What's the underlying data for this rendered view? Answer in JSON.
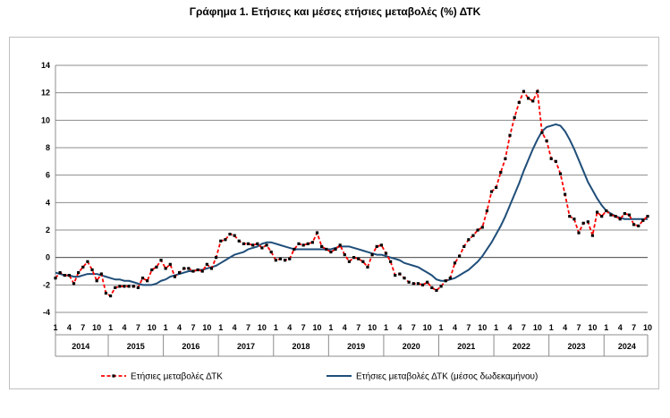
{
  "chart_data": {
    "type": "line",
    "title": "Γράφημα 1. Ετήσιες και μέσες ετήσιες μεταβολές (%) ΔΤΚ",
    "ylim": [
      -4,
      14
    ],
    "yticks": [
      "-4",
      "-2",
      "0",
      "2",
      "4",
      "6",
      "8",
      "10",
      "12",
      "14"
    ],
    "grid": true,
    "legend_position": "bottom",
    "month_tick_labels": [
      "1",
      "4",
      "7",
      "10"
    ],
    "years": [
      "2014",
      "2015",
      "2016",
      "2017",
      "2018",
      "2019",
      "2020",
      "2021",
      "2022",
      "2023",
      "2024"
    ],
    "x_start": "2014-01",
    "series": [
      {
        "name": "Ετήσιες μεταβολές ΔΤΚ",
        "color": "#ff0000",
        "marker_color": "#000000",
        "style": "dashed-with-markers",
        "values": [
          -1.5,
          -1.1,
          -1.3,
          -1.3,
          -1.9,
          -1.1,
          -0.7,
          -0.3,
          -0.9,
          -1.7,
          -1.2,
          -2.6,
          -2.8,
          -2.2,
          -2.1,
          -2.1,
          -2.1,
          -2.1,
          -2.2,
          -1.5,
          -1.7,
          -0.9,
          -0.7,
          -0.2,
          -0.8,
          -0.5,
          -1.4,
          -1.1,
          -0.8,
          -0.8,
          -1.0,
          -0.9,
          -1.0,
          -0.5,
          -0.8,
          0.0,
          1.2,
          1.3,
          1.7,
          1.6,
          1.2,
          1.0,
          1.0,
          0.9,
          1.0,
          0.7,
          0.9,
          0.4,
          -0.2,
          -0.1,
          -0.2,
          -0.1,
          0.6,
          1.0,
          0.9,
          1.0,
          1.1,
          1.8,
          0.8,
          0.6,
          0.4,
          0.6,
          0.9,
          0.2,
          -0.3,
          0.0,
          -0.1,
          -0.3,
          -0.7,
          0.2,
          0.8,
          0.9,
          0.3,
          -0.3,
          -1.3,
          -1.2,
          -1.5,
          -1.8,
          -1.9,
          -1.9,
          -2.0,
          -1.8,
          -2.2,
          -2.4,
          -2.1,
          -1.7,
          -1.5,
          -0.4,
          0.1,
          0.8,
          1.3,
          1.6,
          2.0,
          2.2,
          3.4,
          4.8,
          5.1,
          6.2,
          7.2,
          8.9,
          10.2,
          11.3,
          12.1,
          11.6,
          11.4,
          12.1,
          9.1,
          8.5,
          7.2,
          7.0,
          6.1,
          4.6,
          3.0,
          2.8,
          1.8,
          2.5,
          2.6,
          1.6,
          3.3,
          3.0,
          3.4,
          3.1,
          3.0,
          2.8,
          3.2,
          3.1,
          2.4,
          2.3,
          2.7,
          3.0
        ]
      },
      {
        "name": "Ετήσιες μεταβολές ΔΤΚ (μέσος δωδεκαμήνου)",
        "color": "#1f4e79",
        "style": "solid",
        "values": [
          -1.1,
          -1.2,
          -1.3,
          -1.3,
          -1.4,
          -1.4,
          -1.3,
          -1.2,
          -1.2,
          -1.2,
          -1.3,
          -1.4,
          -1.5,
          -1.6,
          -1.6,
          -1.7,
          -1.7,
          -1.8,
          -1.9,
          -2.0,
          -2.0,
          -2.0,
          -1.9,
          -1.7,
          -1.6,
          -1.4,
          -1.3,
          -1.2,
          -1.1,
          -1.0,
          -1.0,
          -0.9,
          -0.9,
          -0.8,
          -0.7,
          -0.6,
          -0.4,
          -0.2,
          0.0,
          0.2,
          0.3,
          0.4,
          0.6,
          0.7,
          0.8,
          1.0,
          1.1,
          1.1,
          1.0,
          0.9,
          0.8,
          0.7,
          0.6,
          0.6,
          0.6,
          0.6,
          0.6,
          0.6,
          0.6,
          0.6,
          0.6,
          0.7,
          0.8,
          0.8,
          0.8,
          0.7,
          0.6,
          0.5,
          0.4,
          0.3,
          0.2,
          0.2,
          0.1,
          0.0,
          -0.1,
          -0.2,
          -0.4,
          -0.5,
          -0.6,
          -0.7,
          -0.9,
          -1.1,
          -1.3,
          -1.6,
          -1.7,
          -1.7,
          -1.6,
          -1.5,
          -1.3,
          -1.1,
          -0.9,
          -0.6,
          -0.3,
          0.1,
          0.6,
          1.1,
          1.7,
          2.3,
          3.0,
          3.8,
          4.6,
          5.4,
          6.3,
          7.1,
          7.9,
          8.6,
          9.2,
          9.5,
          9.6,
          9.7,
          9.6,
          9.2,
          8.6,
          7.9,
          7.1,
          6.3,
          5.5,
          4.9,
          4.3,
          3.8,
          3.4,
          3.2,
          3.0,
          2.9,
          2.8,
          2.8,
          2.8,
          2.8,
          2.8,
          2.8
        ]
      }
    ]
  }
}
